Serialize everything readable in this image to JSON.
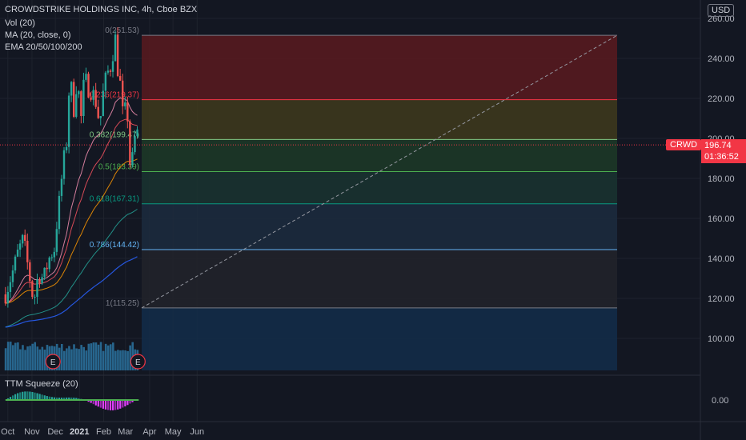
{
  "header": {
    "title": "CROWDSTRIKE HOLDINGS INC, 4h, Cboe BZX",
    "indicators": [
      "Vol (20)",
      "MA (20, close, 0)",
      "EMA 20/50/100/200"
    ],
    "squeeze_label": "TTM Squeeze (20)",
    "currency": "USD"
  },
  "price_tag": {
    "symbol": "CRWD",
    "price": "196.74",
    "countdown": "01:36:52"
  },
  "colors": {
    "bg": "#131722",
    "up": "#26a69a",
    "down": "#ef5350",
    "ma": "#f48fb1",
    "ema20": "#f7525f",
    "ema50": "#ff9800",
    "ema100": "#26a69a",
    "ema200": "#2962ff"
  },
  "chart_data": {
    "type": "candlestick",
    "y_axis": {
      "ticks": [
        "260.00",
        "240.00",
        "220.00",
        "200.00",
        "180.00",
        "160.00",
        "140.00",
        "120.00",
        "100.00"
      ],
      "range": [
        84,
        262
      ]
    },
    "x_axis": {
      "ticks": [
        "Oct",
        "Nov",
        "Dec",
        "2021",
        "Feb",
        "Mar",
        "Apr",
        "May",
        "Jun"
      ]
    },
    "fib_levels": [
      {
        "ratio": "0",
        "price": 251.53,
        "label": "0(251.53)",
        "color": "#787b86",
        "band": "#5b1a1f"
      },
      {
        "ratio": "0.236",
        "price": 219.37,
        "label": "0.236(219.37)",
        "color": "#f23645",
        "band": "#3f3a1c"
      },
      {
        "ratio": "0.382",
        "price": 199.47,
        "label": "0.382(199.47)",
        "color": "#81c784",
        "band": "#1d3a27"
      },
      {
        "ratio": "0.5",
        "price": 183.39,
        "label": "0.5(183.39)",
        "color": "#4caf50",
        "band": "#1a3430"
      },
      {
        "ratio": "0.618",
        "price": 167.31,
        "label": "0.618(167.31)",
        "color": "#089981",
        "band": "#1c2c3e"
      },
      {
        "ratio": "0.786",
        "price": 144.42,
        "label": "0.786(144.42)",
        "color": "#64b5f6",
        "band": "#22232a"
      },
      {
        "ratio": "1",
        "price": 115.25,
        "label": "1(115.25)",
        "color": "#787b86",
        "band": "#132d4a"
      }
    ],
    "price_path": [
      [
        "Sep 28",
        122
      ],
      [
        "Oct 7",
        133
      ],
      [
        "Oct 14",
        143
      ],
      [
        "Oct 21",
        150
      ],
      [
        "Oct 28",
        133
      ],
      [
        "Nov 2",
        121
      ],
      [
        "Nov 4",
        120
      ],
      [
        "Nov 9",
        132
      ],
      [
        "Nov 16",
        130
      ],
      [
        "Nov 23",
        140
      ],
      [
        "Nov 30",
        145
      ],
      [
        "Dec 3",
        158
      ],
      [
        "Dec 8",
        175
      ],
      [
        "Dec 11",
        188
      ],
      [
        "Dec 15",
        195
      ],
      [
        "Dec 18",
        222
      ],
      [
        "Dec 21",
        228
      ],
      [
        "Dec 24",
        212
      ],
      [
        "Dec 29",
        230
      ],
      [
        "Jan 4",
        207
      ],
      [
        "Jan 7",
        232
      ],
      [
        "Jan 12",
        225
      ],
      [
        "Jan 18",
        223
      ],
      [
        "Jan 22",
        218
      ],
      [
        "Jan 27",
        207
      ],
      [
        "Feb 1",
        225
      ],
      [
        "Feb 5",
        232
      ],
      [
        "Feb 10",
        236
      ],
      [
        "Feb 16",
        250
      ],
      [
        "Feb 19",
        235
      ],
      [
        "Feb 24",
        223
      ],
      [
        "Feb 26",
        208
      ],
      [
        "Mar 1",
        215
      ],
      [
        "Mar 3",
        218
      ],
      [
        "Mar 5",
        196
      ],
      [
        "Mar 8",
        182
      ],
      [
        "Mar 10",
        190
      ],
      [
        "Mar 12",
        199
      ],
      [
        "Mar 16",
        203
      ],
      [
        "Mar 18",
        196.74
      ]
    ],
    "markers": [
      {
        "date": "Nov 28",
        "label": "E"
      },
      {
        "date": "Mar 17",
        "label": "E"
      }
    ],
    "squeeze": {
      "zero_label": "0.00"
    }
  }
}
